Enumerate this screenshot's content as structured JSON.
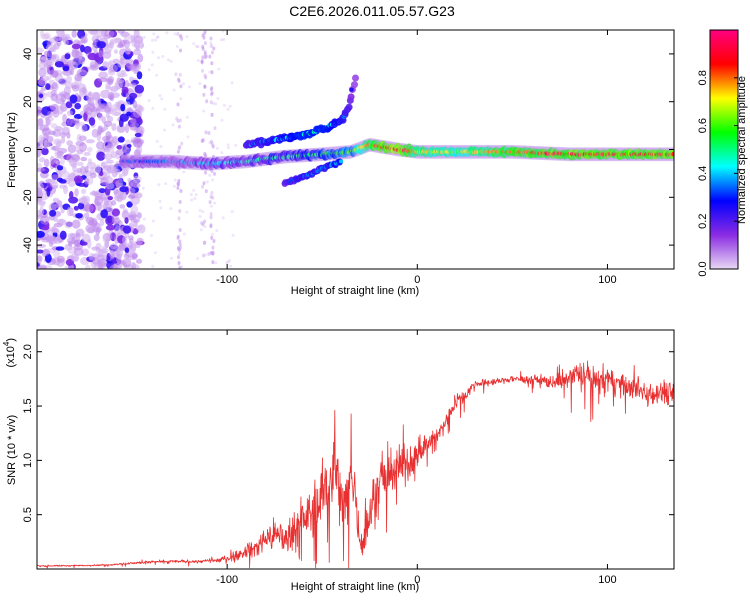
{
  "title": "C2E6.2026.011.05.57.G23",
  "chart_data": [
    {
      "type": "heatmap",
      "xlabel": "Height of straight line (km)",
      "ylabel": "Frequency (Hz)",
      "xlim": [
        -200,
        135
      ],
      "ylim": [
        -50,
        50
      ],
      "xticks": [
        -100,
        0,
        100
      ],
      "yticks": [
        -40,
        -20,
        0,
        20,
        40
      ],
      "colorbar": {
        "label": "Normalized spectral amplitude",
        "range": [
          0,
          1
        ],
        "ticks": [
          0.0,
          0.2,
          0.4,
          0.6,
          0.8
        ],
        "tick_labels": [
          "0.0",
          "0.2",
          "0.4",
          "0.6",
          "0.8"
        ],
        "colors": [
          "#e8d8f4",
          "#8a2be2",
          "#0000ff",
          "#00ffff",
          "#00ff00",
          "#ffff00",
          "#ff0000",
          "#ff0080"
        ]
      },
      "features": [
        {
          "name": "main trace",
          "x": [
            -155,
            -130,
            -110,
            -90,
            -70,
            -50,
            -35,
            -25,
            -10,
            0,
            20,
            50,
            80,
            100,
            135
          ],
          "y": [
            -5,
            -5,
            -6,
            -5,
            -3,
            -2,
            -1,
            2,
            0,
            -1,
            -1,
            -1,
            -2,
            -2,
            -2
          ],
          "amplitude": [
            0.3,
            0.35,
            0.4,
            0.45,
            0.5,
            0.55,
            0.6,
            0.8,
            0.9,
            0.75,
            0.7,
            0.8,
            0.85,
            0.85,
            0.85
          ]
        },
        {
          "name": "upper branch",
          "x": [
            -90,
            -75,
            -60,
            -48,
            -40,
            -36,
            -32
          ],
          "y": [
            2,
            4,
            6,
            9,
            12,
            18,
            32
          ],
          "amplitude": [
            0.35,
            0.4,
            0.45,
            0.45,
            0.4,
            0.35,
            0.2
          ]
        },
        {
          "name": "lower branch",
          "x": [
            -70,
            -62,
            -55,
            -48,
            -40
          ],
          "y": [
            -14,
            -12,
            -10,
            -7,
            -5
          ],
          "amplitude": [
            0.3,
            0.35,
            0.35,
            0.35,
            0.4
          ]
        },
        {
          "name": "noise region",
          "x_range": [
            -200,
            -145
          ],
          "y_range": [
            -50,
            50
          ],
          "amplitude": 0.2
        }
      ]
    },
    {
      "type": "line",
      "xlabel": "Height of straight line (km)",
      "ylabel": "SNR (10 * v/v)",
      "multiplier_label": "(x10",
      "multiplier_exp": "4",
      "xlim": [
        -200,
        135
      ],
      "ylim": [
        0,
        2.2
      ],
      "xticks": [
        -100,
        0,
        100
      ],
      "yticks": [
        0.5,
        1.0,
        1.5,
        2.0
      ],
      "ytick_labels": [
        "0.5",
        "1.0",
        "1.5",
        "2.0"
      ],
      "color": "#e83030",
      "series": [
        {
          "name": "SNR",
          "x": [
            -200,
            -180,
            -160,
            -145,
            -130,
            -115,
            -105,
            -95,
            -85,
            -80,
            -75,
            -70,
            -65,
            -60,
            -55,
            -50,
            -45,
            -42,
            -40,
            -37,
            -35,
            -32,
            -30,
            -27,
            -25,
            -22,
            -20,
            -15,
            -10,
            -5,
            0,
            5,
            10,
            15,
            20,
            25,
            30,
            40,
            50,
            60,
            70,
            80,
            85,
            90,
            95,
            100,
            110,
            120,
            135
          ],
          "y": [
            0.03,
            0.03,
            0.04,
            0.06,
            0.07,
            0.07,
            0.08,
            0.12,
            0.2,
            0.28,
            0.32,
            0.28,
            0.35,
            0.48,
            0.5,
            0.7,
            0.9,
            0.85,
            0.55,
            0.6,
            0.9,
            0.6,
            0.25,
            0.35,
            0.45,
            0.75,
            0.8,
            0.85,
            0.95,
            0.95,
            1.05,
            1.15,
            1.2,
            1.35,
            1.55,
            1.6,
            1.7,
            1.72,
            1.75,
            1.75,
            1.72,
            1.75,
            1.8,
            1.78,
            1.7,
            1.75,
            1.68,
            1.63,
            1.63
          ],
          "noise": [
            0.01,
            0.01,
            0.01,
            0.02,
            0.02,
            0.02,
            0.03,
            0.06,
            0.12,
            0.18,
            0.2,
            0.2,
            0.25,
            0.3,
            0.35,
            0.4,
            0.45,
            0.45,
            0.5,
            0.5,
            0.5,
            0.45,
            0.25,
            0.3,
            0.35,
            0.3,
            0.3,
            0.3,
            0.28,
            0.25,
            0.2,
            0.2,
            0.18,
            0.15,
            0.1,
            0.08,
            0.06,
            0.05,
            0.05,
            0.06,
            0.1,
            0.15,
            0.2,
            0.2,
            0.2,
            0.2,
            0.12,
            0.15,
            0.18
          ]
        }
      ]
    }
  ]
}
